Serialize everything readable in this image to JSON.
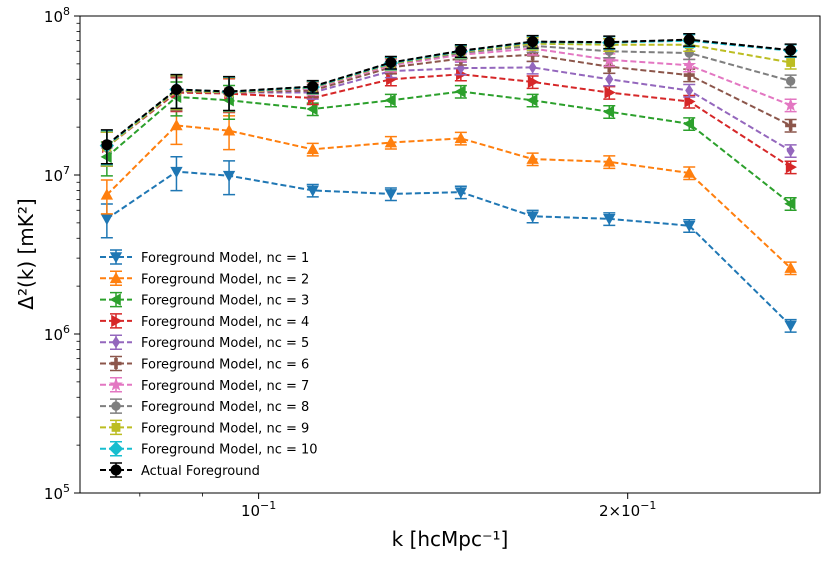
{
  "chart_data": {
    "type": "line",
    "x_scale": "log",
    "y_scale": "log",
    "xlim": [
      0.0715,
      0.287
    ],
    "ylim": [
      100000,
      100000000
    ],
    "xlabel": "k [hcMpc⁻¹]",
    "ylabel": "Δ²(k) [mK²]",
    "y_tick_values": [
      100000,
      1000000,
      10000000,
      100000000
    ],
    "y_tick_bases": [
      "10",
      "10",
      "10",
      "10"
    ],
    "y_tick_exps": [
      "5",
      "6",
      "7",
      "8"
    ],
    "x_tick_values": [
      0.1,
      0.2
    ],
    "x_tick_labels": [
      {
        "base": "10",
        "exp": "−1"
      },
      {
        "base": "2×10",
        "exp": "−1"
      }
    ],
    "x": [
      0.0752,
      0.0857,
      0.0946,
      0.1107,
      0.1282,
      0.1462,
      0.1673,
      0.1932,
      0.2245,
      0.2716
    ],
    "legend_position": "lower-left",
    "series": [
      {
        "name": "Foreground Model, nc = 1",
        "color": "#1f77b4",
        "marker": "tri_down",
        "values": [
          5300000,
          10500000,
          9900000,
          8000000,
          7600000,
          7800000,
          5500000,
          5300000,
          4800000,
          1130000
        ]
      },
      {
        "name": "Foreground Model, nc = 2",
        "color": "#ff7f0e",
        "marker": "tri_up",
        "values": [
          7500000,
          20500000,
          19000000,
          14500000,
          16000000,
          17000000,
          12600000,
          12100000,
          10300000,
          2600000
        ]
      },
      {
        "name": "Foreground Model, nc = 3",
        "color": "#2ca02c",
        "marker": "tri_left",
        "values": [
          13000000,
          31000000,
          29500000,
          26000000,
          29500000,
          33500000,
          29500000,
          25000000,
          21000000,
          6600000
        ]
      },
      {
        "name": "Foreground Model, nc = 4",
        "color": "#d62728",
        "marker": "tri_right",
        "values": [
          15000000,
          33000000,
          32500000,
          30500000,
          40000000,
          43000000,
          38500000,
          33000000,
          29000000,
          11200000
        ]
      },
      {
        "name": "Foreground Model, nc = 5",
        "color": "#9467bd",
        "marker": "diamond",
        "values": [
          15000000,
          33500000,
          33000000,
          33000000,
          45000000,
          47000000,
          47500000,
          40000000,
          34000000,
          14200000
        ]
      },
      {
        "name": "Foreground Model, nc = 6",
        "color": "#8c564b",
        "marker": "plus",
        "values": [
          15000000,
          33500000,
          33000000,
          34000000,
          47500000,
          54000000,
          57000000,
          48000000,
          42500000,
          20500000
        ]
      },
      {
        "name": "Foreground Model, nc = 7",
        "color": "#e377c2",
        "marker": "star",
        "values": [
          15000000,
          34000000,
          33000000,
          35000000,
          49000000,
          57000000,
          62500000,
          53000000,
          49000000,
          27500000
        ]
      },
      {
        "name": "Foreground Model, nc = 8",
        "color": "#7f7f7f",
        "marker": "circle",
        "values": [
          15000000,
          34000000,
          33000000,
          35500000,
          50000000,
          58500000,
          65000000,
          60000000,
          58500000,
          39000000
        ]
      },
      {
        "name": "Foreground Model, nc = 9",
        "color": "#bcbd22",
        "marker": "square",
        "values": [
          15000000,
          34000000,
          33000000,
          35500000,
          50000000,
          59500000,
          67000000,
          66000000,
          66000000,
          51000000
        ]
      },
      {
        "name": "Foreground Model, nc = 10",
        "color": "#17becf",
        "marker": "diamond_lg",
        "values": [
          15300000,
          34500000,
          33300000,
          35700000,
          50500000,
          60000000,
          68500000,
          68000000,
          70000000,
          60500000
        ]
      },
      {
        "name": "Actual Foreground",
        "color": "#000000",
        "marker": "circle_lg",
        "values": [
          15500000,
          34500000,
          33500000,
          36000000,
          51000000,
          60500000,
          69000000,
          68500000,
          71000000,
          61000000
        ]
      }
    ]
  }
}
